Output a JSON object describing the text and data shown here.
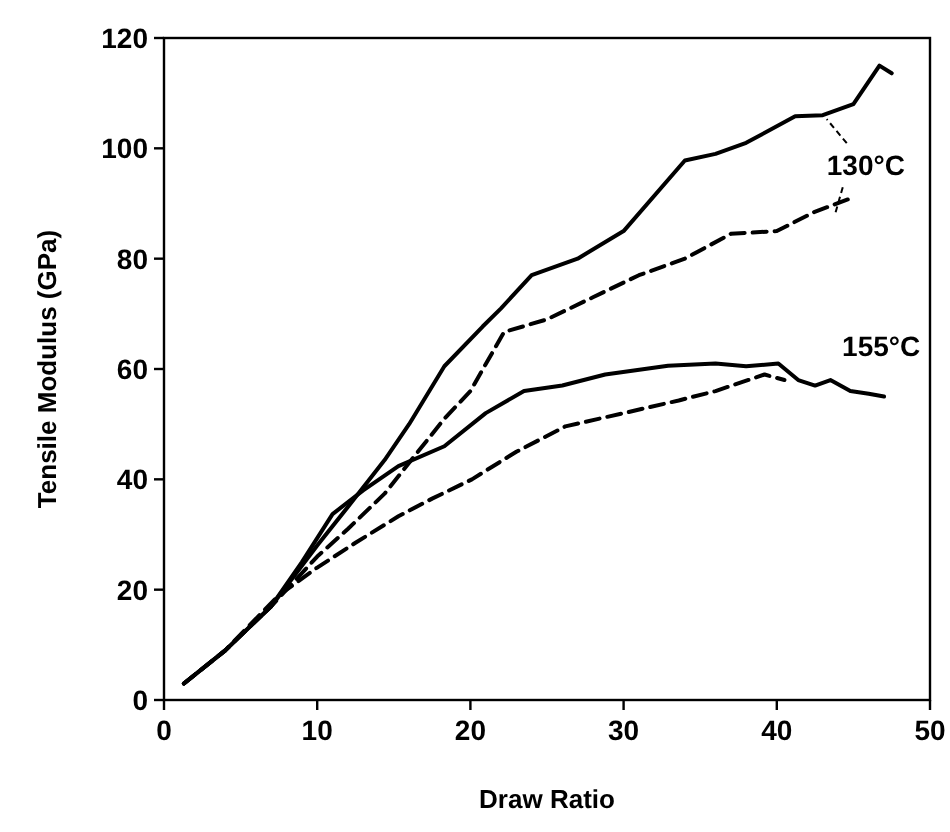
{
  "chart_data": {
    "type": "line",
    "xlabel": "Draw Ratio",
    "ylabel": "Tensile Modulus (GPa)",
    "xlim": [
      0,
      50
    ],
    "ylim": [
      0,
      120
    ],
    "xticks": [
      0,
      10,
      20,
      30,
      40,
      50
    ],
    "yticks": [
      0,
      20,
      40,
      60,
      80,
      100,
      120
    ],
    "marker": "none",
    "series": [
      {
        "color": "#000000",
        "line_style": "solid",
        "x": [
          1.3,
          4,
          7,
          10,
          12,
          14.4,
          16,
          18.3,
          20.8,
          22,
          24,
          27,
          30,
          34,
          36,
          38,
          41.2,
          43,
          44,
          45,
          46.7,
          47.5
        ],
        "values": [
          3,
          9,
          17,
          28,
          35,
          43.5,
          50,
          60.5,
          67.7,
          71,
          77,
          80,
          85,
          97.8,
          99,
          101,
          105.8,
          106,
          107,
          108,
          115,
          113.6
        ]
      },
      {
        "color": "#000000",
        "line_style": "dashed",
        "x": [
          1.3,
          4,
          7,
          10,
          12,
          14.4,
          16,
          18.3,
          20,
          22.2,
          25,
          28,
          31,
          34,
          37,
          40,
          42.4,
          44.7
        ],
        "values": [
          3,
          9,
          17,
          26,
          31,
          37.4,
          43,
          51,
          56,
          66.7,
          69,
          73,
          77,
          80,
          84.5,
          85,
          88.4,
          90.8
        ]
      },
      {
        "color": "#000000",
        "line_style": "solid",
        "x": [
          1.3,
          4,
          7,
          9,
          11,
          13,
          15.3,
          18.3,
          21,
          23.5,
          26,
          28.8,
          32.9,
          36,
          38,
          40.1,
          41.4,
          42.5,
          43.5,
          44.8,
          46,
          47
        ],
        "values": [
          3,
          9,
          17,
          25,
          33.7,
          38,
          42.4,
          46,
          52,
          56,
          57,
          59,
          60.6,
          61,
          60.5,
          61,
          58,
          57,
          58,
          56,
          55.5,
          55
        ]
      },
      {
        "color": "#000000",
        "line_style": "dashed",
        "x": [
          1.3,
          4,
          7.5,
          10,
          12.5,
          15.3,
          17.5,
          20.1,
          23,
          26.2,
          30,
          33.6,
          36,
          39.2,
          40.5
        ],
        "values": [
          3,
          9,
          19,
          24,
          28.5,
          33.3,
          36.5,
          40,
          45,
          49.6,
          52,
          54.3,
          56,
          59,
          58
        ]
      }
    ],
    "annotations": [
      {
        "text": "130°C",
        "x": 43,
        "y": 106
      },
      {
        "text": "155°C",
        "x": 44,
        "y": 58
      }
    ]
  }
}
